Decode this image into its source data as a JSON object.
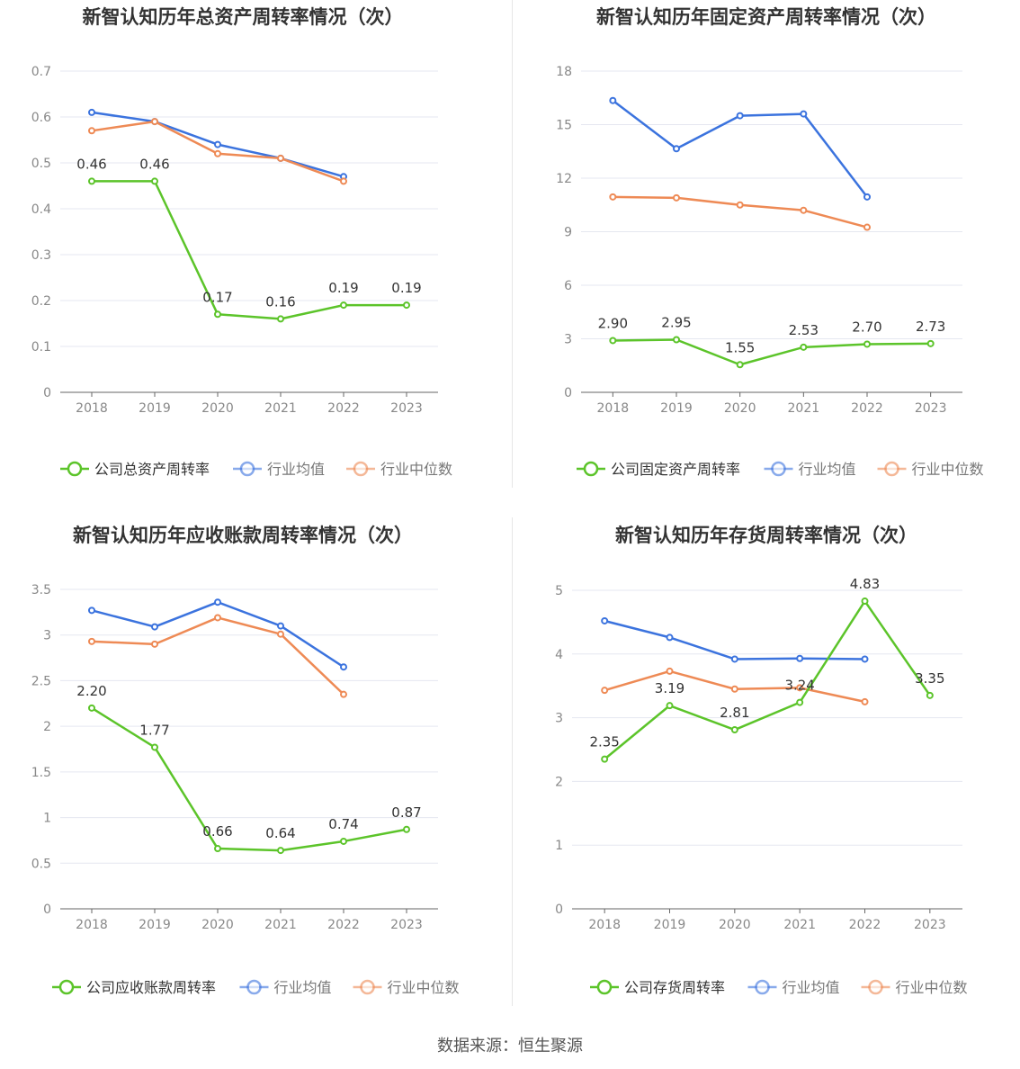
{
  "source_text": "数据来源：恒生聚源",
  "colors": {
    "company": "#5cc42a",
    "avg": "#3b73de",
    "median": "#ee8a55",
    "axis": "#888888",
    "grid": "#e5e7f0"
  },
  "legend_labels": {
    "avg": "行业均值",
    "median": "行业中位数"
  },
  "chart_data": [
    {
      "type": "line",
      "title": "新智认知历年总资产周转率情况（次）",
      "categories": [
        "2018",
        "2019",
        "2020",
        "2021",
        "2022",
        "2023"
      ],
      "ylim": [
        0,
        0.7
      ],
      "yticks": [
        "0",
        "0.1",
        "0.2",
        "0.3",
        "0.4",
        "0.5",
        "0.6",
        "0.7"
      ],
      "grid": true,
      "legend_position": "bottom",
      "series": [
        {
          "key": "company",
          "name": "公司总资产周转率",
          "values": [
            0.46,
            0.46,
            0.17,
            0.16,
            0.19,
            0.19
          ],
          "labels": [
            "0.46",
            "0.46",
            "0.17",
            "0.16",
            "0.19",
            "0.19"
          ]
        },
        {
          "key": "avg",
          "name": "行业均值",
          "values": [
            0.61,
            0.59,
            0.54,
            0.51,
            0.47,
            null
          ]
        },
        {
          "key": "median",
          "name": "行业中位数",
          "values": [
            0.57,
            0.59,
            0.52,
            0.51,
            0.46,
            null
          ]
        }
      ]
    },
    {
      "type": "line",
      "title": "新智认知历年固定资产周转率情况（次）",
      "categories": [
        "2018",
        "2019",
        "2020",
        "2021",
        "2022",
        "2023"
      ],
      "ylim": [
        0,
        18
      ],
      "yticks": [
        "0",
        "3",
        "6",
        "9",
        "12",
        "15",
        "18"
      ],
      "grid": true,
      "legend_position": "bottom",
      "series": [
        {
          "key": "company",
          "name": "公司固定资产周转率",
          "values": [
            2.9,
            2.95,
            1.55,
            2.53,
            2.7,
            2.73
          ],
          "labels": [
            "2.90",
            "2.95",
            "1.55",
            "2.53",
            "2.70",
            "2.73"
          ]
        },
        {
          "key": "avg",
          "name": "行业均值",
          "values": [
            16.35,
            13.65,
            15.5,
            15.6,
            10.95,
            null
          ]
        },
        {
          "key": "median",
          "name": "行业中位数",
          "values": [
            10.95,
            10.9,
            10.5,
            10.2,
            9.25,
            null
          ]
        }
      ]
    },
    {
      "type": "line",
      "title": "新智认知历年应收账款周转率情况（次）",
      "categories": [
        "2018",
        "2019",
        "2020",
        "2021",
        "2022",
        "2023"
      ],
      "ylim": [
        0,
        3.5
      ],
      "yticks": [
        "0",
        "0.5",
        "1",
        "1.5",
        "2",
        "2.5",
        "3",
        "3.5"
      ],
      "grid": true,
      "legend_position": "bottom",
      "series": [
        {
          "key": "company",
          "name": "公司应收账款周转率",
          "values": [
            2.2,
            1.77,
            0.66,
            0.64,
            0.74,
            0.87
          ],
          "labels": [
            "2.20",
            "1.77",
            "0.66",
            "0.64",
            "0.74",
            "0.87"
          ]
        },
        {
          "key": "avg",
          "name": "行业均值",
          "values": [
            3.27,
            3.09,
            3.36,
            3.1,
            2.65,
            null
          ]
        },
        {
          "key": "median",
          "name": "行业中位数",
          "values": [
            2.93,
            2.9,
            3.19,
            3.01,
            2.35,
            null
          ]
        }
      ]
    },
    {
      "type": "line",
      "title": "新智认知历年存货周转率情况（次）",
      "categories": [
        "2018",
        "2019",
        "2020",
        "2021",
        "2022",
        "2023"
      ],
      "ylim": [
        0,
        5
      ],
      "yticks": [
        "0",
        "1",
        "2",
        "3",
        "4",
        "5"
      ],
      "grid": true,
      "legend_position": "bottom",
      "series": [
        {
          "key": "company",
          "name": "公司存货周转率",
          "values": [
            2.35,
            3.19,
            2.81,
            3.24,
            4.83,
            3.35
          ],
          "labels": [
            "2.35",
            "3.19",
            "2.81",
            "3.24",
            "4.83",
            "3.35"
          ]
        },
        {
          "key": "avg",
          "name": "行业均值",
          "values": [
            4.52,
            4.26,
            3.92,
            3.93,
            3.92,
            null
          ]
        },
        {
          "key": "median",
          "name": "行业中位数",
          "values": [
            3.43,
            3.73,
            3.45,
            3.47,
            3.25,
            null
          ]
        }
      ]
    }
  ]
}
